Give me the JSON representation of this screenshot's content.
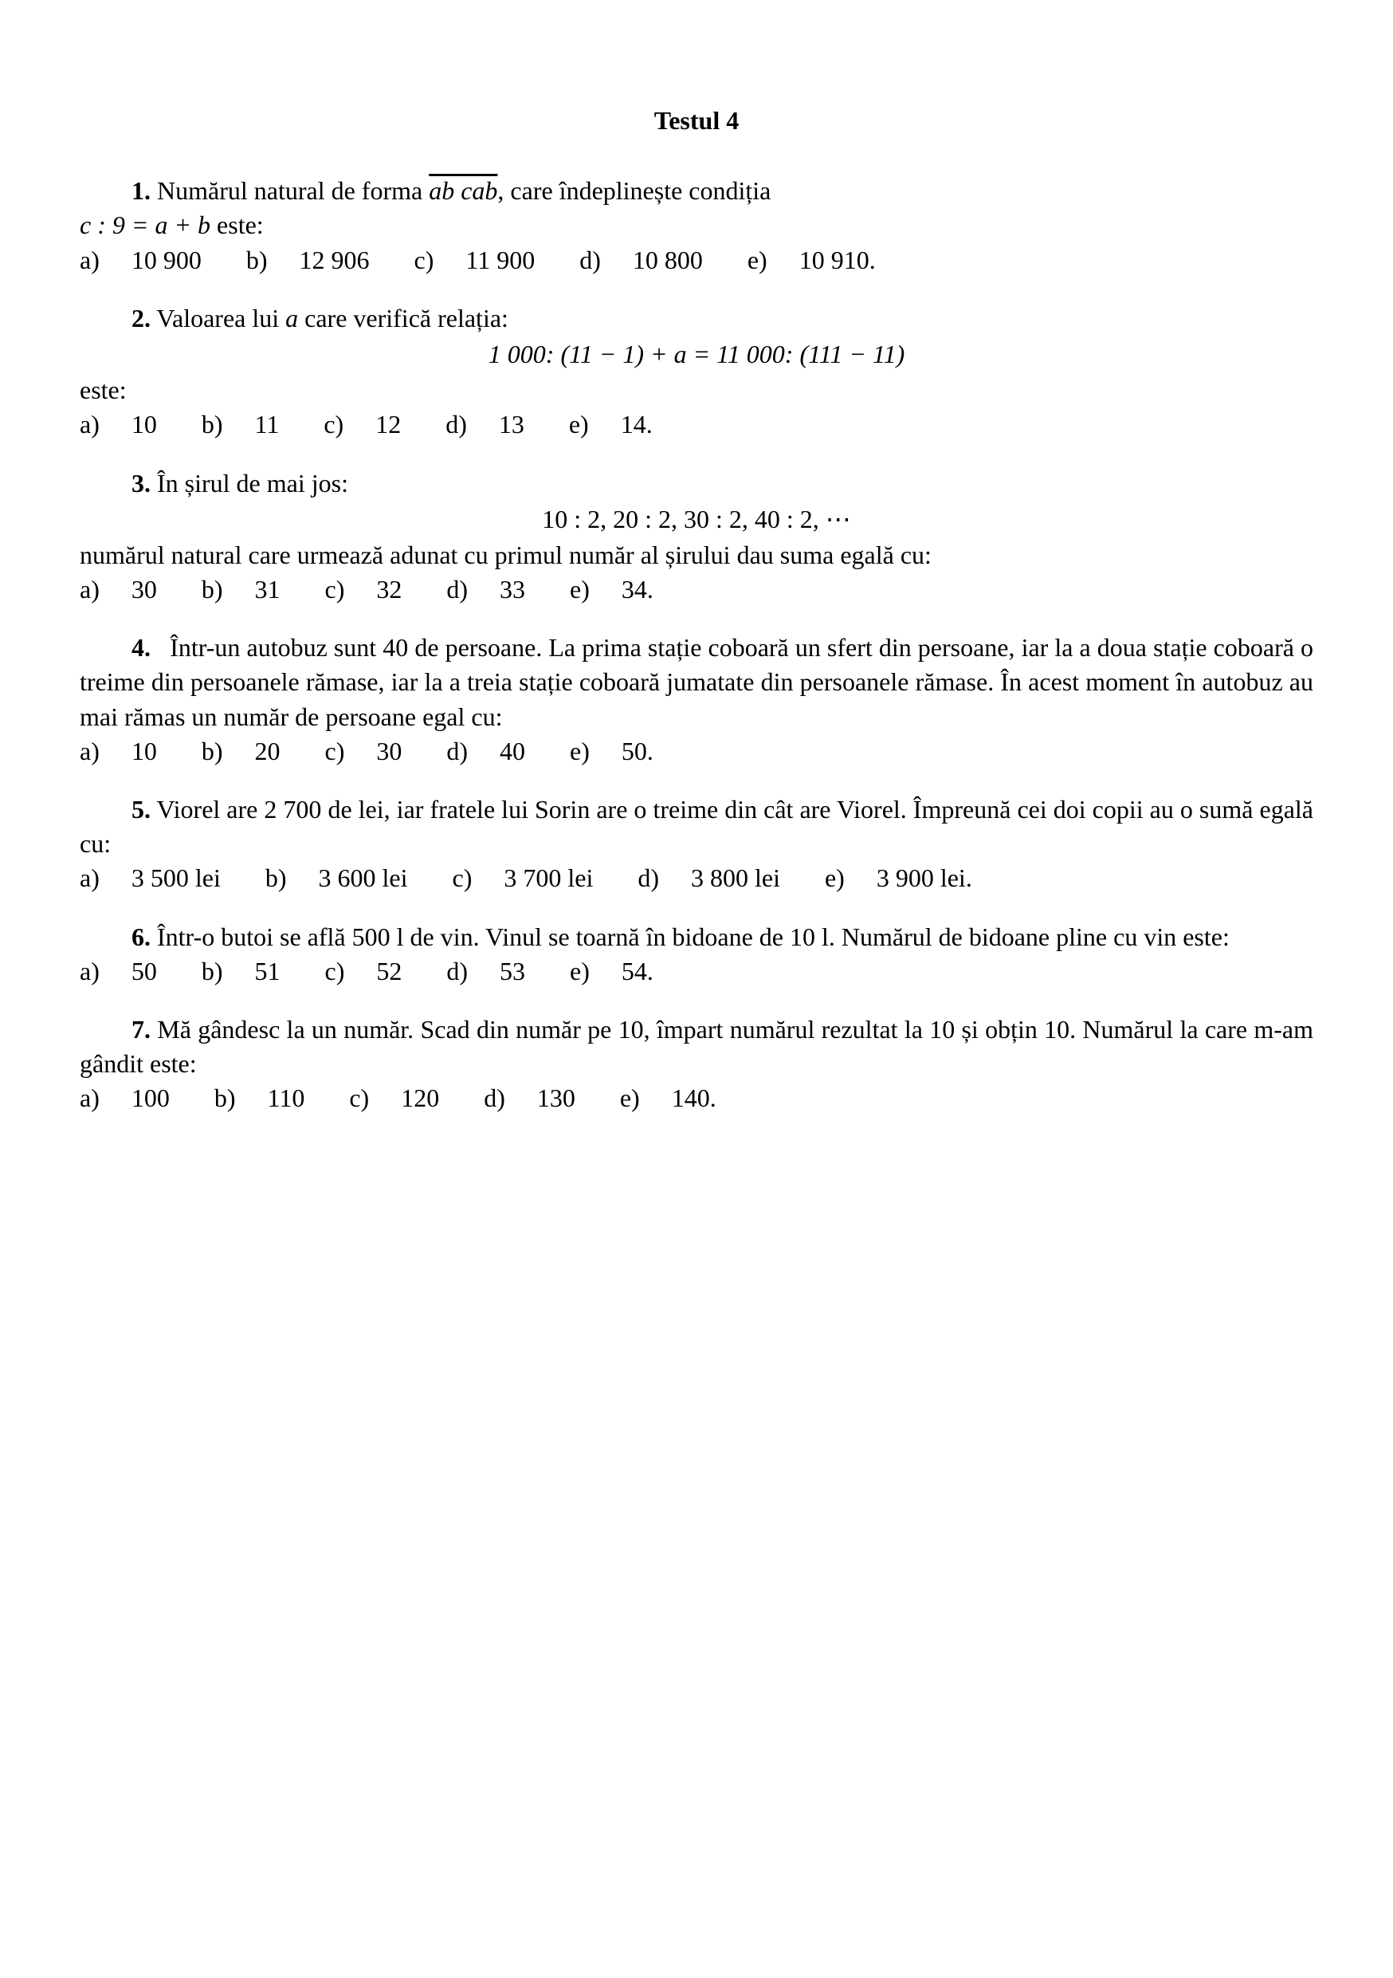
{
  "title": "Testul 4",
  "problems": [
    {
      "num": "1.",
      "text_before_overline": "Numărul natural de forma ",
      "overline": "ab cab",
      "text_after_overline": ", care îndeplinește condiția",
      "cont": "c : 9 = a + b",
      "cont_after": " este:",
      "options": [
        {
          "letter": "a)",
          "val": "10 900"
        },
        {
          "letter": "b)",
          "val": "12 906"
        },
        {
          "letter": "c)",
          "val": "11 900"
        },
        {
          "letter": "d)",
          "val": "10 800"
        },
        {
          "letter": "e)",
          "val": "10 910."
        }
      ]
    },
    {
      "num": "2.",
      "text": "Valoarea lui ",
      "var": "a",
      "text2": " care verifică relația:",
      "equation": "1 000: (11 − 1) + a = 11 000: (111 − 11)",
      "cont": "este:",
      "options": [
        {
          "letter": "a)",
          "val": "10"
        },
        {
          "letter": "b)",
          "val": "11"
        },
        {
          "letter": "c)",
          "val": "12"
        },
        {
          "letter": "d)",
          "val": "13"
        },
        {
          "letter": "e)",
          "val": "14."
        }
      ]
    },
    {
      "num": "3.",
      "text": "În șirul de mai jos:",
      "equation": "10 : 2, 20 : 2, 30 : 2, 40 : 2, ⋯",
      "cont": "numărul natural care urmează adunat cu primul număr al șirului dau suma egală cu:",
      "options": [
        {
          "letter": "a)",
          "val": "30"
        },
        {
          "letter": "b)",
          "val": "31"
        },
        {
          "letter": "c)",
          "val": "32"
        },
        {
          "letter": "d)",
          "val": "33"
        },
        {
          "letter": "e)",
          "val": "34."
        }
      ]
    },
    {
      "num": "4.",
      "text": "Într-un autobuz sunt 40 de persoane. La prima stație coboară un sfert din persoane, iar la a doua stație coboară o treime din persoanele rămase, iar la a treia stație coboară jumatate din persoanele rămase. În acest moment în autobuz au mai rămas un număr de persoane egal cu:",
      "options": [
        {
          "letter": "a)",
          "val": "10"
        },
        {
          "letter": "b)",
          "val": "20"
        },
        {
          "letter": "c)",
          "val": "30"
        },
        {
          "letter": "d)",
          "val": "40"
        },
        {
          "letter": "e)",
          "val": "50."
        }
      ]
    },
    {
      "num": "5.",
      "text": "Viorel are 2 700 de lei, iar fratele lui Sorin are o treime din cât are Viorel. Împreună cei doi copii au o sumă egală cu:",
      "options": [
        {
          "letter": "a)",
          "val": "3 500 lei"
        },
        {
          "letter": "b)",
          "val": "3 600 lei"
        },
        {
          "letter": "c)",
          "val": "3 700 lei"
        },
        {
          "letter": "d)",
          "val": "3 800 lei"
        },
        {
          "letter": "e)",
          "val": "3 900 lei."
        }
      ]
    },
    {
      "num": "6.",
      "text": "Într-o butoi se află 500 l de vin. Vinul se toarnă în bidoane de 10 l. Numărul de bidoane pline cu vin este:",
      "options": [
        {
          "letter": "a)",
          "val": "50"
        },
        {
          "letter": "b)",
          "val": "51"
        },
        {
          "letter": "c)",
          "val": "52"
        },
        {
          "letter": "d)",
          "val": "53"
        },
        {
          "letter": "e)",
          "val": "54."
        }
      ]
    },
    {
      "num": "7.",
      "text": "Mă gândesc la un număr. Scad din număr pe 10, împart numărul rezultat la 10 și obțin 10. Numărul la care m-am gândit este:",
      "options": [
        {
          "letter": "a)",
          "val": "100"
        },
        {
          "letter": "b)",
          "val": "110"
        },
        {
          "letter": "c)",
          "val": "120"
        },
        {
          "letter": "d)",
          "val": "130"
        },
        {
          "letter": "e)",
          "val": "140."
        }
      ]
    }
  ]
}
